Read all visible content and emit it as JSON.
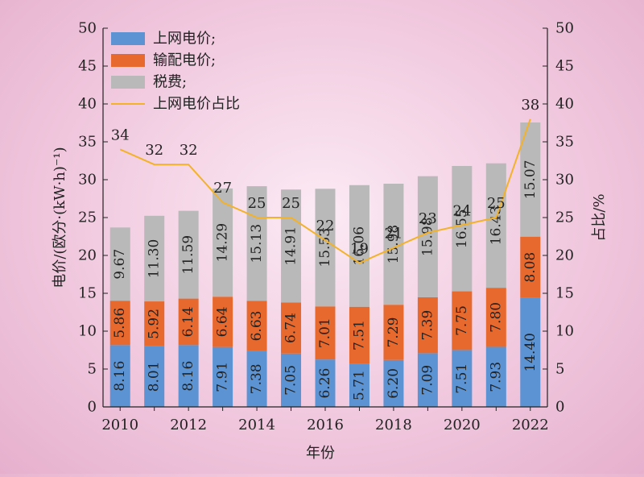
{
  "chart_data": {
    "type": "bar",
    "stacked": true,
    "categories": [
      "2010",
      "2011",
      "2012",
      "2013",
      "2014",
      "2015",
      "2016",
      "2017",
      "2018",
      "2019",
      "2020",
      "2021",
      "2022"
    ],
    "x_tick_labels": [
      "2010",
      "2012",
      "2014",
      "2016",
      "2018",
      "2020",
      "2022"
    ],
    "series": [
      {
        "name": "上网电价;",
        "color": "#5b93d3",
        "values": [
          8.16,
          8.01,
          8.16,
          7.91,
          7.38,
          7.05,
          6.26,
          5.71,
          6.2,
          7.09,
          7.51,
          7.93,
          14.4
        ]
      },
      {
        "name": "输配电价;",
        "color": "#e8692d",
        "values": [
          5.86,
          5.92,
          6.14,
          6.64,
          6.63,
          6.74,
          7.01,
          7.51,
          7.29,
          7.39,
          7.75,
          7.8,
          8.08
        ]
      },
      {
        "name": "税费;",
        "color": "#b9b9b9",
        "values": [
          9.67,
          11.3,
          11.59,
          14.29,
          15.13,
          14.91,
          15.53,
          16.06,
          15.98,
          15.98,
          16.55,
          16.43,
          15.07
        ]
      }
    ],
    "line_series": {
      "name": "上网电价占比",
      "color": "#f3b228",
      "values": [
        34,
        32,
        32,
        27,
        25,
        25,
        22,
        19,
        21,
        23,
        24,
        25,
        38
      ]
    },
    "ylabel": "电价/(欧分·(kW·h)⁻¹)",
    "y2label": "占比/%",
    "xlabel": "年份",
    "ylim": [
      0,
      50
    ],
    "y2lim": [
      0,
      50
    ],
    "yticks": [
      0,
      5,
      10,
      15,
      20,
      25,
      30,
      35,
      40,
      45,
      50
    ],
    "legend_position": "top-left",
    "grid": false
  }
}
